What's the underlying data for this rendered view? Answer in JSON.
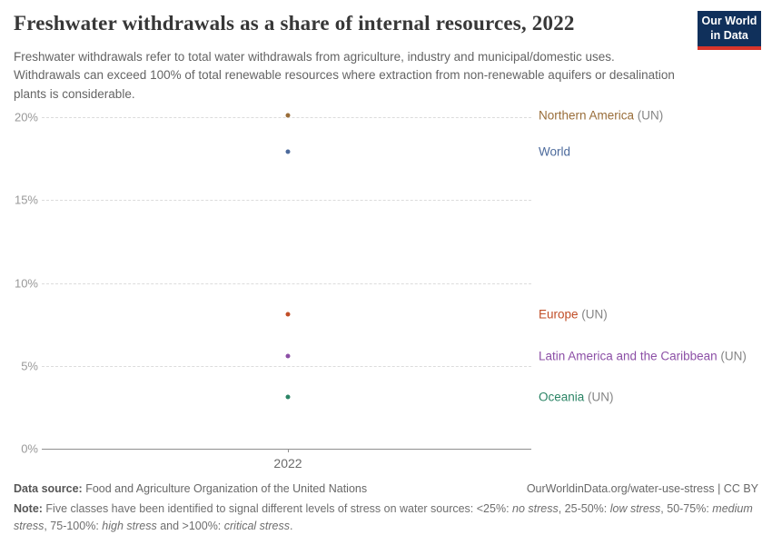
{
  "header": {
    "title": "Freshwater withdrawals as a share of internal resources, 2022",
    "subtitle": "Freshwater withdrawals refer to total water withdrawals from agriculture, industry and municipal/domestic uses. Withdrawals can exceed 100% of total renewable resources where extraction from non-renewable aquifers or desalination plants is considerable.",
    "logo": {
      "line1": "Our World",
      "line2": "in Data",
      "bg_color": "#10305B",
      "accent_color": "#D8352B"
    }
  },
  "chart_data": {
    "type": "scatter",
    "title": "Freshwater withdrawals as a share of internal resources, 2022",
    "x": [
      2022
    ],
    "x_tick_label": "2022",
    "ylim": [
      0,
      20
    ],
    "yticks": [
      0,
      5,
      10,
      15,
      20
    ],
    "ytick_labels": [
      "0%",
      "5%",
      "10%",
      "15%",
      "20%"
    ],
    "grid": "horizontal-dashed",
    "legend_position": "right-inline-labels",
    "series": [
      {
        "name": "Northern America",
        "suffix": " (UN)",
        "values": [
          20.1
        ],
        "color": "#996D39"
      },
      {
        "name": "World",
        "suffix": "",
        "values": [
          17.9
        ],
        "color": "#4C6A9C"
      },
      {
        "name": "Europe",
        "suffix": " (UN)",
        "values": [
          8.1
        ],
        "color": "#C14E27"
      },
      {
        "name": "Latin America and the Caribbean",
        "suffix": " (UN)",
        "values": [
          5.6
        ],
        "color": "#8C4FA6"
      },
      {
        "name": "Oceania",
        "suffix": " (UN)",
        "values": [
          3.1
        ],
        "color": "#2B8465"
      }
    ]
  },
  "footer": {
    "source_label": "Data source:",
    "source_text": " Food and Agriculture Organization of the United Nations",
    "link_text": "OurWorldinData.org/water-use-stress | CC BY",
    "note_label": "Note:",
    "note_segments": [
      {
        "text": " Five classes have been identified to signal different levels of stress on water sources: <25%: ",
        "italic": false
      },
      {
        "text": "no stress",
        "italic": true
      },
      {
        "text": ", 25-50%: ",
        "italic": false
      },
      {
        "text": "low stress",
        "italic": true
      },
      {
        "text": ", 50-75%: ",
        "italic": false
      },
      {
        "text": "medium stress",
        "italic": true
      },
      {
        "text": ", 75-100%: ",
        "italic": false
      },
      {
        "text": "high stress",
        "italic": true
      },
      {
        "text": " and >100%: ",
        "italic": false
      },
      {
        "text": "critical stress",
        "italic": true
      },
      {
        "text": ".",
        "italic": false
      }
    ]
  }
}
